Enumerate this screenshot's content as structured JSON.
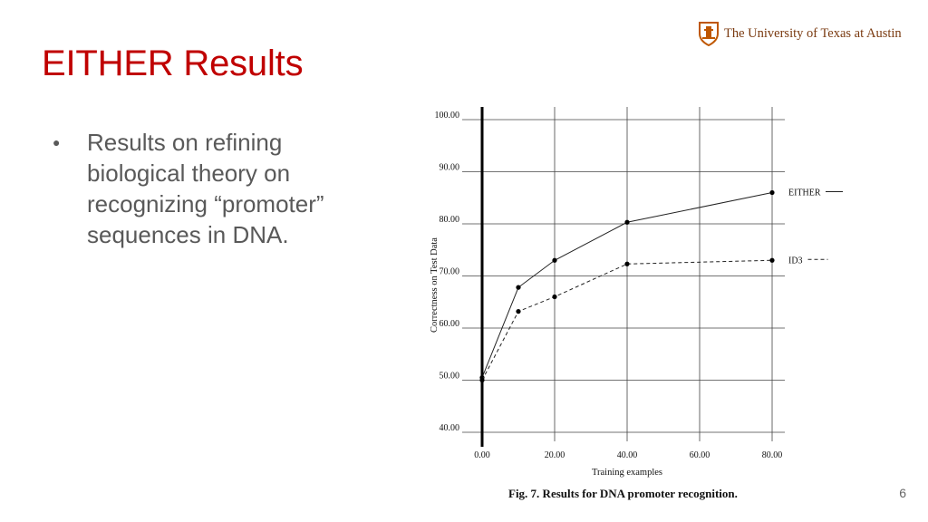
{
  "slide": {
    "title": "EITHER Results",
    "logo_text": "The University of Texas at Austin",
    "bullets": [
      "Results on refining biological theory on recognizing “promoter” sequences in DNA."
    ],
    "caption": "Fig. 7. Results for DNA promoter recognition.",
    "page_number": "6"
  },
  "colors": {
    "title": "#c00000",
    "logo": "#bf5700",
    "body_text": "#595959"
  },
  "chart_data": {
    "type": "line",
    "xlabel": "Training examples",
    "ylabel": "Correctness on Test Data",
    "xlim": [
      0,
      80
    ],
    "ylim": [
      40,
      100
    ],
    "xticks": [
      0,
      20,
      40,
      60,
      80
    ],
    "xtick_labels": [
      "0.00",
      "20.00",
      "40.00",
      "60.00",
      "80.00"
    ],
    "yticks": [
      40,
      50,
      60,
      70,
      80,
      90,
      100
    ],
    "ytick_labels": [
      "40.00",
      "50.00",
      "60.00",
      "70.00",
      "80.00",
      "90.00",
      "100.00"
    ],
    "grid": true,
    "series": [
      {
        "name": "EITHER",
        "style": "solid",
        "x": [
          0,
          10,
          20,
          40,
          80
        ],
        "y": [
          50.5,
          67.8,
          73.0,
          80.3,
          86.0
        ]
      },
      {
        "name": "ID3",
        "style": "dashed",
        "x": [
          0,
          10,
          20,
          40,
          80
        ],
        "y": [
          50.0,
          63.2,
          66.0,
          72.3,
          73.0
        ]
      }
    ]
  }
}
